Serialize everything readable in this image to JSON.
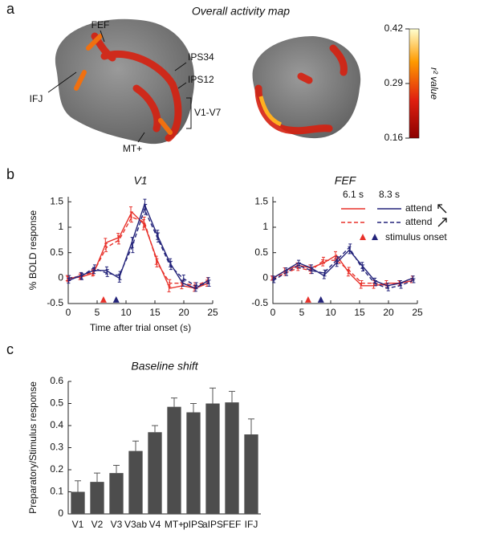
{
  "chart_data": [
    {
      "type": "map",
      "panel_label": "a",
      "title": "Overall activity map",
      "labels": [
        "FEF",
        "IFJ",
        "IPS34",
        "IPS12",
        "V1-V7",
        "MT+"
      ],
      "colorbar": {
        "label": "r² value",
        "lim": [
          0.16,
          0.42
        ],
        "ticks": [
          0.16,
          0.29,
          0.42
        ]
      }
    },
    {
      "type": "line",
      "panel_label": "b",
      "title": "V1",
      "xlabel": "Time after trial onset (s)",
      "ylabel": "% BOLD response",
      "x": [
        0,
        2.2,
        4.4,
        6.6,
        8.8,
        11,
        13.2,
        15.4,
        17.6,
        19.8,
        22,
        24.2
      ],
      "xlim": [
        0,
        25
      ],
      "xticks": [
        0,
        5,
        10,
        15,
        20,
        25
      ],
      "ylim": [
        -0.5,
        1.6
      ],
      "yticks": [
        -0.5,
        0,
        0.5,
        1,
        1.5
      ],
      "onsets": [
        {
          "x": 6.1,
          "color": "#e8312a"
        },
        {
          "x": 8.3,
          "color": "#23237a"
        }
      ],
      "series": [
        {
          "color": "#e8312a",
          "dash": false,
          "values": [
            0,
            0.02,
            0.1,
            0.7,
            0.8,
            1.3,
            1.05,
            0.35,
            -0.2,
            -0.15,
            -0.2,
            -0.1
          ],
          "errors": [
            0.05,
            0.05,
            0.06,
            0.08,
            0.08,
            0.1,
            0.1,
            0.08,
            0.07,
            0.06,
            0.06,
            0.06
          ]
        },
        {
          "color": "#e8312a",
          "dash": true,
          "values": [
            -0.02,
            0.05,
            0.12,
            0.6,
            0.75,
            1.2,
            1.1,
            0.3,
            -0.1,
            -0.1,
            -0.15,
            -0.05
          ],
          "errors": [
            0.05,
            0.05,
            0.06,
            0.08,
            0.08,
            0.1,
            0.1,
            0.08,
            0.07,
            0.06,
            0.06,
            0.06
          ]
        },
        {
          "color": "#23237a",
          "dash": false,
          "values": [
            -0.05,
            0.05,
            0.15,
            0.15,
            0,
            0.7,
            1.45,
            0.85,
            0.3,
            -0.1,
            -0.2,
            -0.05
          ],
          "errors": [
            0.05,
            0.06,
            0.06,
            0.07,
            0.08,
            0.1,
            0.1,
            0.09,
            0.08,
            0.06,
            0.06,
            0.06
          ]
        },
        {
          "color": "#23237a",
          "dash": true,
          "values": [
            0,
            0.03,
            0.2,
            0.1,
            0.05,
            0.6,
            1.35,
            0.8,
            0.25,
            0,
            -0.15,
            -0.1
          ],
          "errors": [
            0.05,
            0.06,
            0.06,
            0.07,
            0.08,
            0.1,
            0.1,
            0.09,
            0.08,
            0.06,
            0.06,
            0.06
          ]
        }
      ]
    },
    {
      "type": "line",
      "title": "FEF",
      "x": [
        0,
        2.2,
        4.4,
        6.6,
        8.8,
        11,
        13.2,
        15.4,
        17.6,
        19.8,
        22,
        24.2
      ],
      "xlim": [
        0,
        25
      ],
      "xticks": [
        0,
        5,
        10,
        15,
        20,
        25
      ],
      "ylim": [
        -0.5,
        1.6
      ],
      "yticks": [
        -0.5,
        0,
        0.5,
        1,
        1.5
      ],
      "onsets": [
        {
          "x": 6.1,
          "color": "#e8312a"
        },
        {
          "x": 8.3,
          "color": "#23237a"
        }
      ],
      "legend": {
        "columns": [
          "6.1 s",
          "8.3 s"
        ],
        "rows": [
          "attend",
          "attend"
        ],
        "onset": "stimulus onset"
      },
      "series": [
        {
          "color": "#e8312a",
          "dash": false,
          "values": [
            0,
            0.15,
            0.25,
            0.2,
            0.3,
            0.45,
            0.1,
            -0.15,
            -0.15,
            -0.1,
            -0.1,
            -0.05
          ],
          "errors": [
            0.04,
            0.05,
            0.05,
            0.06,
            0.06,
            0.07,
            0.06,
            0.05,
            0.05,
            0.05,
            0.05,
            0.04
          ]
        },
        {
          "color": "#e8312a",
          "dash": true,
          "values": [
            0,
            0.1,
            0.2,
            0.15,
            0.35,
            0.35,
            0.15,
            -0.1,
            -0.1,
            -0.15,
            -0.1,
            0
          ],
          "errors": [
            0.04,
            0.05,
            0.05,
            0.06,
            0.06,
            0.07,
            0.06,
            0.05,
            0.05,
            0.05,
            0.05,
            0.04
          ]
        },
        {
          "color": "#23237a",
          "dash": false,
          "values": [
            0,
            0.15,
            0.3,
            0.2,
            0.05,
            0.3,
            0.55,
            0.25,
            -0.05,
            -0.15,
            -0.1,
            0
          ],
          "errors": [
            0.04,
            0.05,
            0.05,
            0.06,
            0.06,
            0.07,
            0.07,
            0.06,
            0.05,
            0.05,
            0.05,
            0.04
          ]
        },
        {
          "color": "#23237a",
          "dash": true,
          "values": [
            -0.05,
            0.1,
            0.25,
            0.15,
            0.1,
            0.35,
            0.6,
            0.2,
            -0.1,
            -0.2,
            -0.15,
            -0.05
          ],
          "errors": [
            0.04,
            0.05,
            0.05,
            0.06,
            0.06,
            0.07,
            0.07,
            0.06,
            0.05,
            0.05,
            0.05,
            0.04
          ]
        }
      ]
    },
    {
      "type": "bar",
      "panel_label": "c",
      "title": "Baseline shift",
      "ylabel": "Preparatory/Stimulus response",
      "color": "#4d4d4d",
      "categories": [
        "V1",
        "V2",
        "V3",
        "V3ab",
        "V4",
        "MT+",
        "pIPS",
        "aIPS",
        "FEF",
        "IFJ"
      ],
      "values": [
        0.1,
        0.145,
        0.185,
        0.285,
        0.37,
        0.485,
        0.46,
        0.5,
        0.505,
        0.36
      ],
      "errors": [
        0.05,
        0.04,
        0.035,
        0.045,
        0.03,
        0.04,
        0.04,
        0.07,
        0.05,
        0.07
      ],
      "ylim": [
        0,
        0.6
      ],
      "yticks": [
        0,
        0.1,
        0.2,
        0.3,
        0.4,
        0.5,
        0.6
      ]
    }
  ]
}
